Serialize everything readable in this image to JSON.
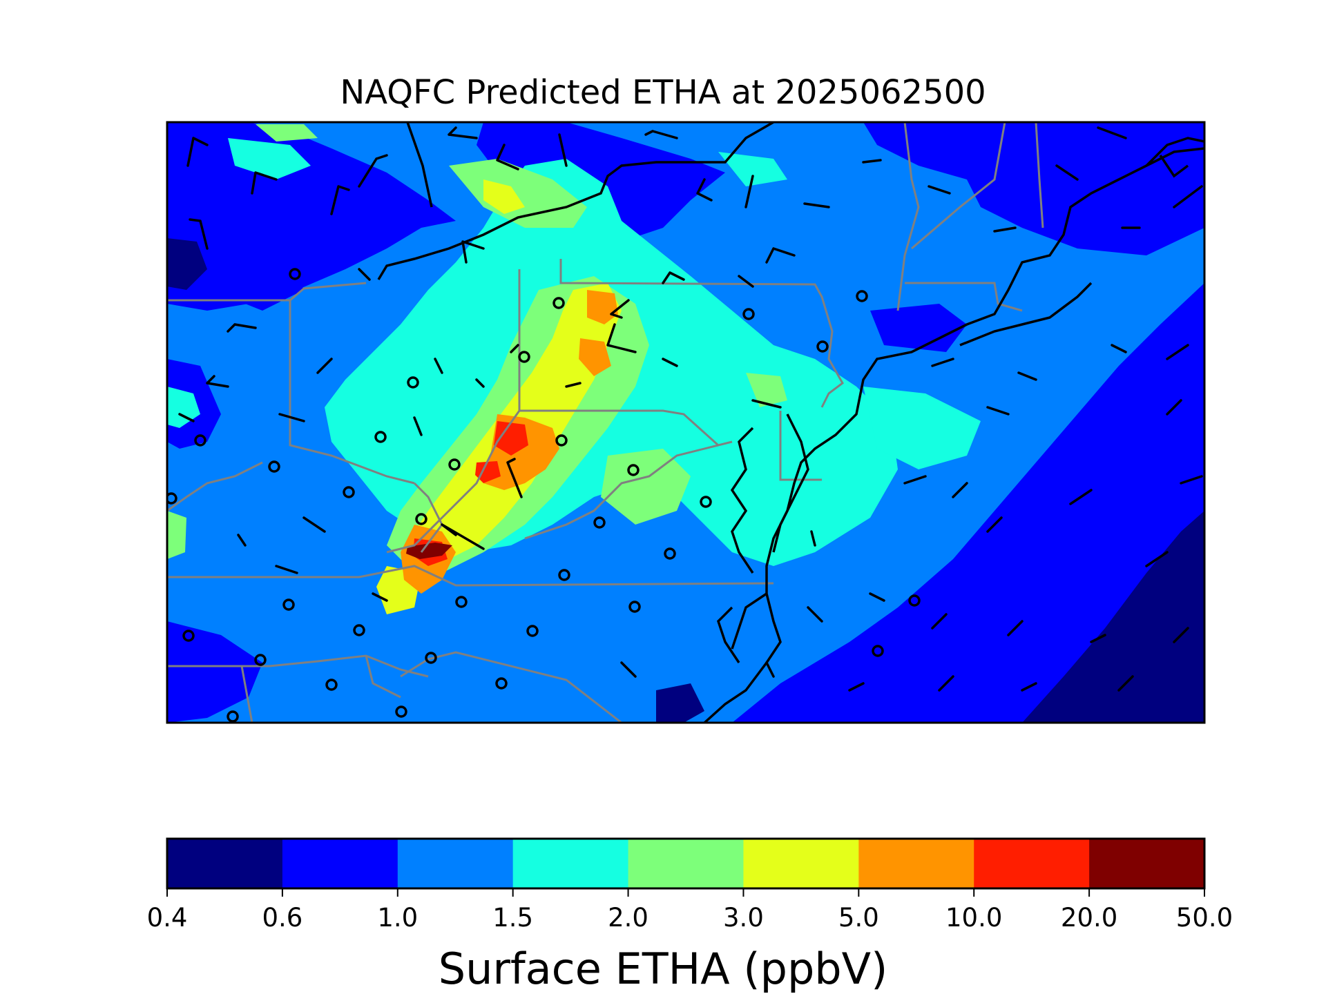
{
  "title": "NAQFC Predicted ETHA at 2025062500",
  "map": {
    "background_level": "1.0–1.5",
    "wind_barb_color": "#000000",
    "station_marker": "open-circle",
    "coastline_color": "#000000",
    "state_border_color": "#808080"
  },
  "colorbar": {
    "label": "Surface ETHA (ppbV)",
    "orientation": "horizontal",
    "bins": [
      {
        "low": 0.4,
        "high": 0.6,
        "color": "#00007f"
      },
      {
        "low": 0.6,
        "high": 1.0,
        "color": "#0000ff"
      },
      {
        "low": 1.0,
        "high": 1.5,
        "color": "#0080ff"
      },
      {
        "low": 1.5,
        "high": 2.0,
        "color": "#15ffe1"
      },
      {
        "low": 2.0,
        "high": 3.0,
        "color": "#7dff7a"
      },
      {
        "low": 3.0,
        "high": 5.0,
        "color": "#e4ff1a"
      },
      {
        "low": 5.0,
        "high": 10.0,
        "color": "#ff9400"
      },
      {
        "low": 10.0,
        "high": 20.0,
        "color": "#ff1e00"
      },
      {
        "low": 20.0,
        "high": 50.0,
        "color": "#7f0000"
      }
    ],
    "ticks": [
      "0.4",
      "0.6",
      "1.0",
      "1.5",
      "2.0",
      "3.0",
      "5.0",
      "10.0",
      "20.0",
      "50.0"
    ]
  }
}
